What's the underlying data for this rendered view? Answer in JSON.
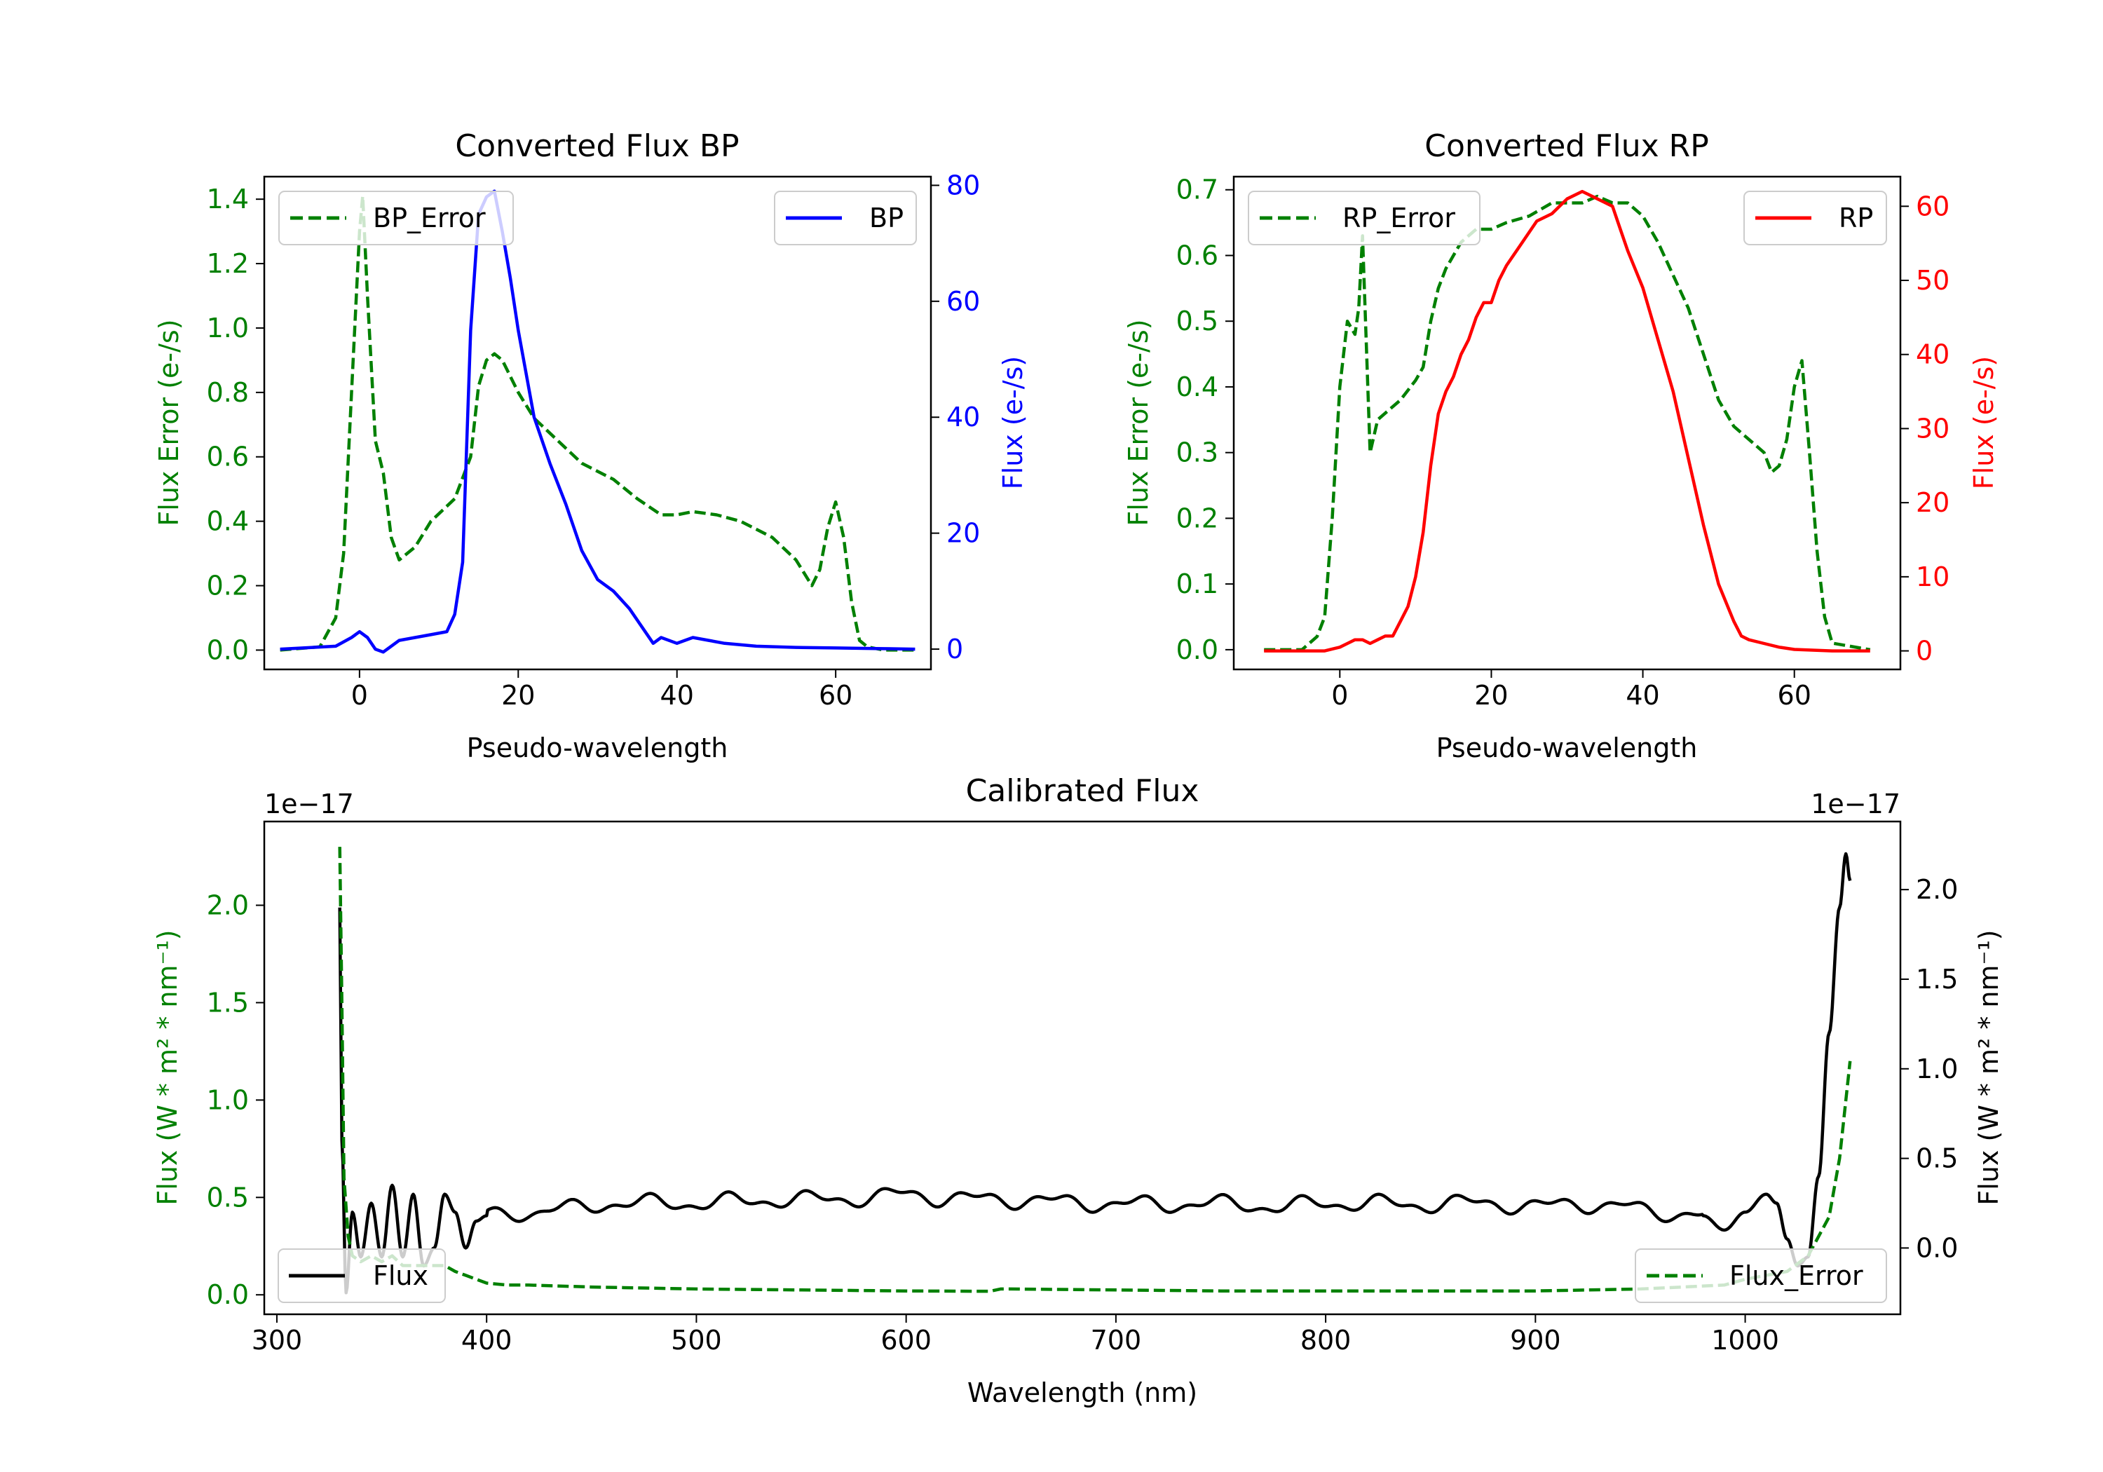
{
  "chart_data": [
    {
      "id": "bp",
      "type": "line",
      "title": "Converted Flux BP",
      "xlabel": "Pseudo-wavelength",
      "ylabel_left": "Flux Error (e-/s)",
      "ylabel_right": "Flux (e-/s)",
      "xlim": [
        -12,
        72
      ],
      "ylim_left": [
        -0.06,
        1.47
      ],
      "ylim_right": [
        -3.5,
        81.5
      ],
      "xticks": [
        0,
        20,
        40,
        60
      ],
      "yticks_left": [
        0.0,
        0.2,
        0.4,
        0.6,
        0.8,
        1.0,
        1.2,
        1.4
      ],
      "yticks_right": [
        0,
        20,
        40,
        60,
        80
      ],
      "left_color": "#008000",
      "right_color": "#0000ff",
      "legend_left": "BP_Error",
      "legend_right": "BP",
      "series": [
        {
          "name": "BP_Error",
          "axis": "left",
          "style": "dashed",
          "color": "#008000",
          "x": [
            -10,
            -5,
            -3,
            -2,
            -1,
            0,
            0.4,
            1,
            2,
            3,
            4,
            5,
            7,
            9,
            12,
            14,
            15,
            16,
            17,
            18,
            20,
            22,
            25,
            28,
            32,
            35,
            38,
            40,
            42,
            45,
            48,
            52,
            55,
            57,
            58,
            59,
            60,
            61,
            62,
            63,
            64,
            66,
            70
          ],
          "values": [
            0.0,
            0.01,
            0.1,
            0.3,
            0.8,
            1.3,
            1.41,
            1.1,
            0.65,
            0.55,
            0.35,
            0.28,
            0.32,
            0.4,
            0.47,
            0.6,
            0.82,
            0.9,
            0.92,
            0.9,
            0.8,
            0.72,
            0.65,
            0.58,
            0.53,
            0.47,
            0.42,
            0.42,
            0.43,
            0.42,
            0.4,
            0.35,
            0.28,
            0.2,
            0.25,
            0.38,
            0.46,
            0.35,
            0.15,
            0.03,
            0.01,
            0.0,
            0.0
          ]
        },
        {
          "name": "BP",
          "axis": "right",
          "style": "solid",
          "color": "#0000ff",
          "x": [
            -10,
            -3,
            -1,
            0,
            1,
            2,
            3,
            4,
            5,
            7,
            9,
            11,
            12,
            13,
            14,
            15,
            16,
            17,
            18,
            19,
            20,
            22,
            24,
            26,
            28,
            30,
            32,
            34,
            36,
            37,
            38,
            40,
            42,
            44,
            46,
            50,
            55,
            60,
            65,
            70
          ],
          "values": [
            0,
            0.5,
            2,
            3,
            2,
            0,
            -0.5,
            0.5,
            1.5,
            2,
            2.5,
            3,
            6,
            15,
            55,
            75,
            78,
            79,
            72,
            64,
            55,
            40,
            32,
            25,
            17,
            12,
            10,
            7,
            3,
            1,
            2,
            1,
            2,
            1.5,
            1,
            0.5,
            0.3,
            0.2,
            0.1,
            0
          ]
        }
      ]
    },
    {
      "id": "rp",
      "type": "line",
      "title": "Converted Flux RP",
      "xlabel": "Pseudo-wavelength",
      "ylabel_left": "Flux Error (e-/s)",
      "ylabel_right": "Flux (e-/s)",
      "xlim": [
        -14,
        74
      ],
      "ylim_left": [
        -0.03,
        0.72
      ],
      "ylim_right": [
        -2.5,
        64
      ],
      "xticks": [
        0,
        20,
        40,
        60
      ],
      "yticks_left": [
        0.0,
        0.1,
        0.2,
        0.3,
        0.4,
        0.5,
        0.6,
        0.7
      ],
      "yticks_right": [
        0,
        10,
        20,
        30,
        40,
        50,
        60
      ],
      "left_color": "#008000",
      "right_color": "#ff0000",
      "legend_left": "RP_Error",
      "legend_right": "RP",
      "series": [
        {
          "name": "RP_Error",
          "axis": "left",
          "style": "dashed",
          "color": "#008000",
          "x": [
            -10,
            -5,
            -3,
            -2,
            -1,
            0,
            1,
            2,
            2.5,
            3,
            4,
            5,
            6,
            8,
            10,
            11,
            12,
            13,
            14,
            16,
            18,
            20,
            22,
            25,
            28,
            30,
            32,
            34,
            36,
            38,
            40,
            42,
            44,
            46,
            48,
            50,
            52,
            54,
            56,
            57,
            58,
            59,
            60,
            61,
            62,
            63,
            64,
            65,
            70
          ],
          "values": [
            0.0,
            0.0,
            0.02,
            0.05,
            0.2,
            0.4,
            0.5,
            0.48,
            0.52,
            0.63,
            0.3,
            0.35,
            0.36,
            0.38,
            0.41,
            0.43,
            0.5,
            0.55,
            0.58,
            0.62,
            0.64,
            0.64,
            0.65,
            0.66,
            0.68,
            0.68,
            0.68,
            0.69,
            0.68,
            0.68,
            0.66,
            0.62,
            0.57,
            0.52,
            0.45,
            0.38,
            0.34,
            0.32,
            0.3,
            0.27,
            0.28,
            0.32,
            0.4,
            0.44,
            0.3,
            0.15,
            0.05,
            0.01,
            0.0
          ]
        },
        {
          "name": "RP",
          "axis": "right",
          "style": "solid",
          "color": "#ff0000",
          "x": [
            -10,
            -2,
            0,
            1,
            2,
            3,
            4,
            5,
            6,
            7,
            8,
            9,
            10,
            11,
            12,
            13,
            14,
            15,
            16,
            17,
            18,
            19,
            20,
            21,
            22,
            24,
            26,
            28,
            30,
            32,
            33,
            34,
            35,
            36,
            37,
            38,
            40,
            42,
            44,
            46,
            48,
            50,
            52,
            53,
            54,
            56,
            58,
            60,
            65,
            70
          ],
          "values": [
            0,
            0,
            0.5,
            1,
            1.5,
            1.5,
            1,
            1.5,
            2,
            2,
            4,
            6,
            10,
            16,
            25,
            32,
            35,
            37,
            40,
            42,
            45,
            47,
            47,
            50,
            52,
            55,
            58,
            59,
            61,
            62,
            61.5,
            61,
            60.5,
            60,
            57,
            54,
            49,
            42,
            35,
            26,
            17,
            9,
            4,
            2,
            1.5,
            1,
            0.5,
            0.2,
            0,
            0
          ]
        }
      ]
    },
    {
      "id": "calibrated",
      "type": "line",
      "title": "Calibrated Flux",
      "xlabel": "Wavelength (nm)",
      "ylabel_left": "Flux (W * m² * nm⁻¹)",
      "ylabel_right": "Flux (W * m² * nm⁻¹)",
      "offset_left": "1e−17",
      "offset_right": "1e−17",
      "xlim": [
        294,
        1074
      ],
      "ylim_left": [
        -0.1,
        2.43
      ],
      "ylim_right": [
        -0.37,
        2.38
      ],
      "xticks": [
        300,
        400,
        500,
        600,
        700,
        800,
        900,
        1000
      ],
      "yticks_left": [
        0.0,
        0.5,
        1.0,
        1.5,
        2.0
      ],
      "yticks_right": [
        0.0,
        0.5,
        1.0,
        1.5,
        2.0
      ],
      "left_color": "#008000",
      "right_color": "#000000",
      "legend_left": "Flux",
      "legend_right": "Flux_Error",
      "series": [
        {
          "name": "Flux",
          "axis": "right",
          "style": "solid",
          "color": "#000000",
          "generator": "calibrated_flux",
          "anchors_x": [
            330,
            331,
            333,
            336,
            340,
            345,
            350,
            355,
            360,
            365,
            370,
            375,
            380,
            385,
            390,
            395,
            400,
            420,
            440,
            460,
            480,
            500,
            520,
            540,
            560,
            580,
            600,
            620,
            640,
            660,
            680,
            700,
            720,
            740,
            760,
            780,
            800,
            820,
            840,
            860,
            880,
            900,
            920,
            940,
            960,
            980,
            990,
            1000,
            1010,
            1015,
            1020,
            1025,
            1030,
            1035,
            1040,
            1045,
            1048,
            1050
          ],
          "anchors_y": [
            1.9,
            0.6,
            -0.25,
            0.2,
            -0.05,
            0.25,
            -0.05,
            0.35,
            -0.05,
            0.3,
            -0.1,
            0.0,
            0.3,
            0.2,
            0.0,
            0.15,
            0.18,
            0.2,
            0.22,
            0.25,
            0.25,
            0.25,
            0.26,
            0.27,
            0.27,
            0.28,
            0.3,
            0.28,
            0.27,
            0.27,
            0.25,
            0.25,
            0.24,
            0.25,
            0.24,
            0.23,
            0.25,
            0.25,
            0.24,
            0.25,
            0.25,
            0.23,
            0.25,
            0.23,
            0.2,
            0.18,
            0.1,
            0.2,
            0.3,
            0.25,
            0.05,
            -0.1,
            -0.05,
            0.4,
            1.2,
            1.9,
            2.2,
            2.05
          ]
        },
        {
          "name": "Flux_Error",
          "axis": "left",
          "style": "dashed",
          "color": "#008000",
          "x": [
            330,
            331,
            332,
            334,
            336,
            340,
            345,
            350,
            355,
            360,
            370,
            380,
            385,
            390,
            395,
            400,
            410,
            420,
            450,
            500,
            550,
            600,
            640,
            645,
            650,
            700,
            750,
            800,
            850,
            900,
            950,
            990,
            1000,
            1010,
            1020,
            1030,
            1035,
            1040,
            1045,
            1050
          ],
          "values": [
            2.3,
            1.5,
            0.6,
            0.3,
            0.2,
            0.17,
            0.2,
            0.17,
            0.2,
            0.15,
            0.15,
            0.15,
            0.12,
            0.1,
            0.08,
            0.06,
            0.05,
            0.05,
            0.04,
            0.03,
            0.025,
            0.02,
            0.018,
            0.03,
            0.03,
            0.025,
            0.02,
            0.02,
            0.02,
            0.02,
            0.03,
            0.05,
            0.08,
            0.1,
            0.12,
            0.2,
            0.3,
            0.4,
            0.7,
            1.2
          ]
        }
      ]
    }
  ]
}
